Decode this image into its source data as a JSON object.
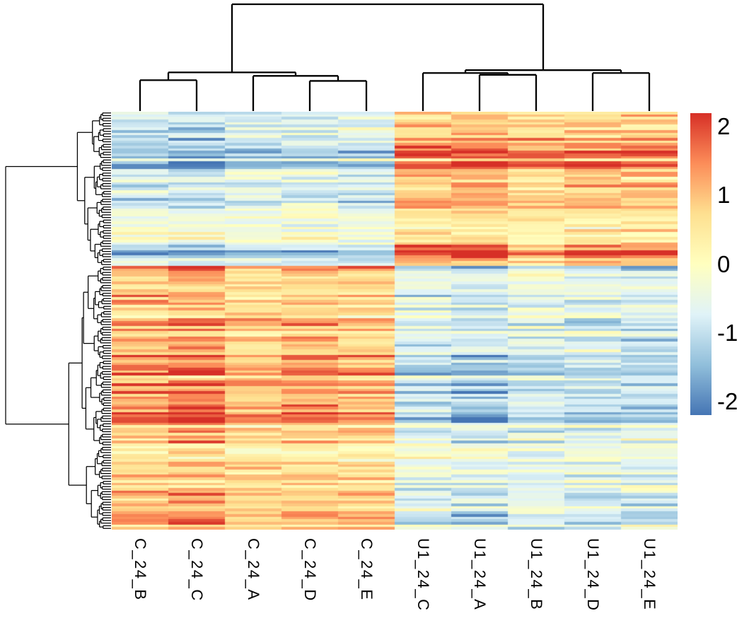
{
  "figure": {
    "background": "#ffffff",
    "line_color": "#000000"
  },
  "chart_data": {
    "type": "heatmap",
    "title": "",
    "xlabel": "",
    "ylabel": "",
    "columns": [
      "C_24_B",
      "C_24_C",
      "C_24_A",
      "C_24_D",
      "C_24_E",
      "U1_24_C",
      "U1_24_A",
      "U1_24_B",
      "U1_24_D",
      "U1_24_E"
    ],
    "column_groups": [
      {
        "name": "C_24",
        "columns": [
          "C_24_B",
          "C_24_C",
          "C_24_A",
          "C_24_D",
          "C_24_E"
        ]
      },
      {
        "name": "U1_24",
        "columns": [
          "U1_24_C",
          "U1_24_A",
          "U1_24_B",
          "U1_24_D",
          "U1_24_E"
        ]
      }
    ],
    "legend": {
      "position": "right",
      "domain": [
        -2.2,
        2.2
      ],
      "ticks": [
        "2",
        "1",
        "0",
        "-1",
        "-2"
      ],
      "tick_values": [
        2,
        1,
        0,
        -1,
        -2
      ]
    },
    "colormap": {
      "name": "RdYlBu-7-reversed",
      "stops": [
        "#4575B4",
        "#91BFDB",
        "#E0F3F8",
        "#FFFFBF",
        "#FEE090",
        "#FC8D59",
        "#D73027"
      ]
    },
    "rows": {
      "count": 160,
      "seed": 11,
      "split_fraction": 0.37
    },
    "row_clusters": [
      {
        "name": "top-cluster",
        "column_means": [
          -0.85,
          -1.0,
          -0.8,
          -0.75,
          -0.8,
          1.05,
          1.2,
          0.8,
          1.05,
          1.0
        ],
        "row_amp_sd": 0.35,
        "band_sd": 0.3,
        "noise_sd": 0.3
      },
      {
        "name": "bottom-cluster",
        "column_means": [
          1.0,
          1.2,
          0.75,
          0.95,
          0.85,
          -0.75,
          -0.9,
          -0.6,
          -0.7,
          -0.8
        ],
        "row_amp_sd": 0.35,
        "band_sd": 0.3,
        "noise_sd": 0.3
      }
    ],
    "column_dendrogram": {
      "h": 1.0,
      "c": [
        {
          "h": 0.362,
          "c": [
            {
              "h": 0.289,
              "c": [
                {
                  "leaf": 0
                },
                {
                  "leaf": 1
                }
              ]
            },
            {
              "h": 0.329,
              "c": [
                {
                  "leaf": 2
                },
                {
                  "h": 0.282,
                  "c": [
                    {
                      "leaf": 3
                    },
                    {
                      "leaf": 4
                    }
                  ]
                }
              ]
            }
          ]
        },
        {
          "h": 0.383,
          "c": [
            {
              "h": 0.356,
              "c": [
                {
                  "leaf": 5
                },
                {
                  "h": 0.339,
                  "c": [
                    {
                      "leaf": 6
                    },
                    {
                      "leaf": 7
                    }
                  ]
                }
              ]
            },
            {
              "h": 0.356,
              "c": [
                {
                  "leaf": 8
                },
                {
                  "leaf": 9
                }
              ]
            }
          ]
        }
      ]
    },
    "row_dendrogram": {
      "coef": 0.42,
      "exp": 0.45,
      "jitter": 0.3,
      "seed": 7
    }
  }
}
